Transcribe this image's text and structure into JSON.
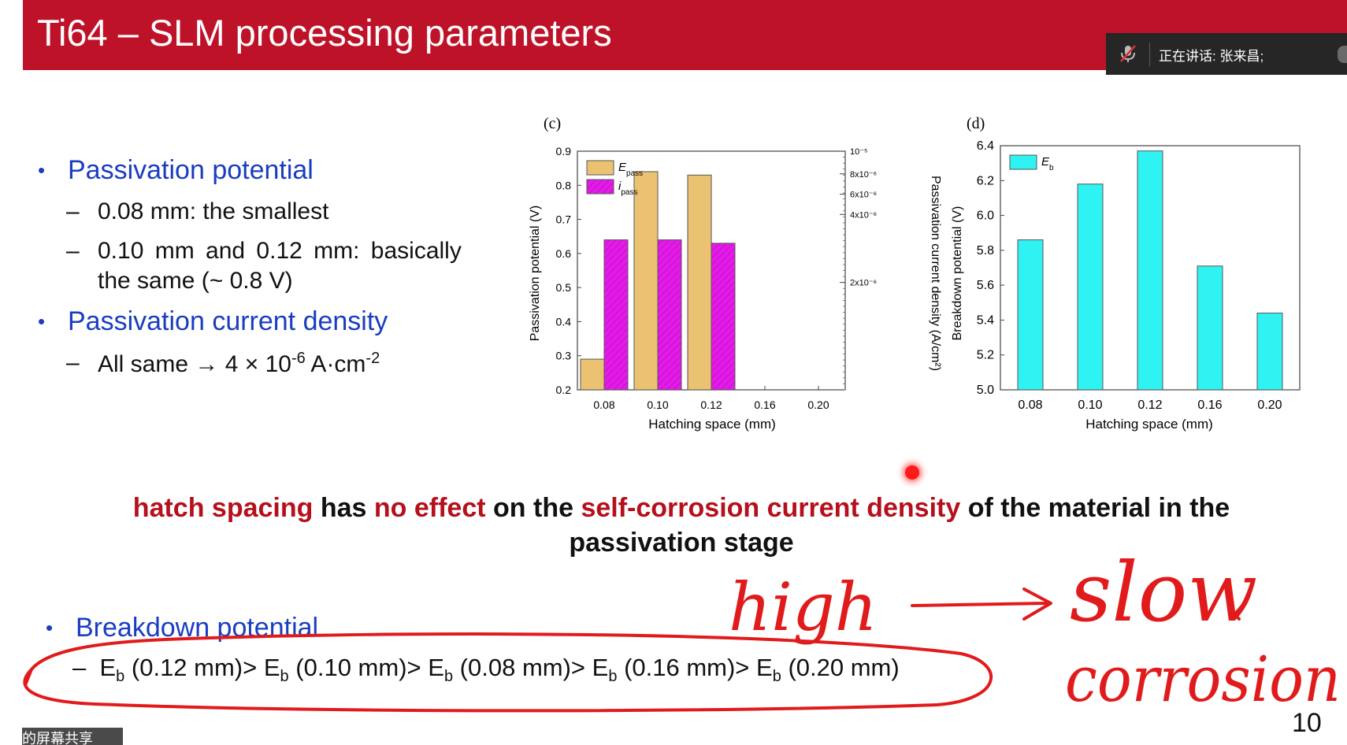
{
  "slide": {
    "title": "Ti64 – SLM processing parameters",
    "page_number": "10"
  },
  "meeting_overlay": {
    "speaking_label": "正在讲话: 张来昌;",
    "screen_share_tag": "的屏幕共享"
  },
  "bullets": {
    "passivation_potential": {
      "heading": "Passivation potential",
      "sub1": "0.08 mm: the smallest",
      "sub2_line1": "0.10 mm and 0.12 mm: basically",
      "sub2_line2": "the same (~ 0.8 V)"
    },
    "passivation_current": {
      "heading": "Passivation current density",
      "sub_prefix": "All same → 4 × 10",
      "sub_exp1": "-6",
      "sub_mid": " A·cm",
      "sub_exp2": "-2"
    },
    "breakdown": {
      "heading": "Breakdown potential",
      "E": "E",
      "b": "b",
      "t1": " (0.12 mm)> ",
      "t2": " (0.10 mm)> ",
      "t3": " (0.08 mm)> ",
      "t4": " (0.16 mm)> ",
      "t5": " (0.20 mm)"
    }
  },
  "statement": {
    "p1": "hatch spacing",
    "p2": " has ",
    "p3": "no effect",
    "p4": " on the ",
    "p5": "self-corrosion current density",
    "p6": " of the material in the passivation stage"
  },
  "handwriting": {
    "word1": "high",
    "word2": "slow",
    "word3": "corrosion"
  },
  "chart_data": [
    {
      "type": "bar",
      "panel_label": "(c)",
      "categories": [
        "0.08",
        "0.10",
        "0.12",
        "0.16",
        "0.20"
      ],
      "xlabel": "Hatching space (mm)",
      "ylabel": "Passivation potential (V)",
      "y2label": "Passivation current density (A/cm²)",
      "ylim": [
        0.2,
        0.9
      ],
      "yticks": [
        "0.2",
        "0.3",
        "0.4",
        "0.5",
        "0.6",
        "0.7",
        "0.8",
        "0.9"
      ],
      "y2ticks": [
        "2x10⁻⁶",
        "4x10⁻⁶",
        "6x10⁻⁶",
        "8x10⁻⁶",
        "10⁻⁵"
      ],
      "legend_position": "top-left",
      "series": [
        {
          "name": "E",
          "name_sub": "pass",
          "color": "#ebc271",
          "axis": "left",
          "values": [
            0.29,
            0.84,
            0.83,
            null,
            null
          ]
        },
        {
          "name": "i",
          "name_sub": "pass",
          "color": "#e51ae8",
          "axis": "left",
          "values": [
            0.64,
            0.64,
            0.63,
            null,
            null
          ]
        }
      ]
    },
    {
      "type": "bar",
      "panel_label": "(d)",
      "categories": [
        "0.08",
        "0.10",
        "0.12",
        "0.16",
        "0.20"
      ],
      "xlabel": "Hatching space (mm)",
      "ylabel": "Breakdown potential (V)",
      "ylim": [
        5.0,
        6.4
      ],
      "yticks": [
        "5.0",
        "5.2",
        "5.4",
        "5.6",
        "5.8",
        "6.0",
        "6.2",
        "6.4"
      ],
      "legend_position": "top-left",
      "series": [
        {
          "name": "E",
          "name_sub": "b",
          "color": "#2ff2f2",
          "values": [
            5.86,
            6.18,
            6.37,
            5.71,
            5.44
          ]
        }
      ]
    }
  ]
}
